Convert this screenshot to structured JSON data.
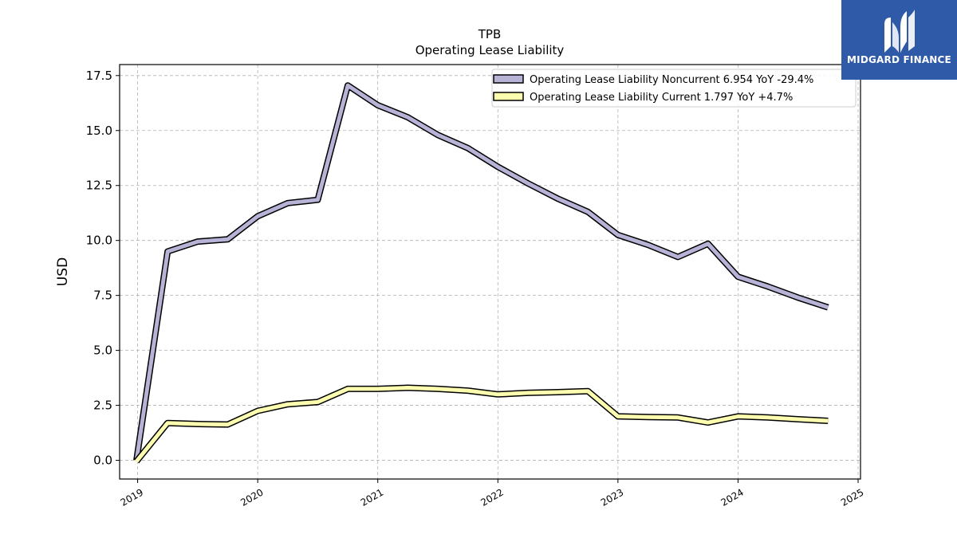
{
  "chart_data": {
    "type": "line",
    "title": "TPB",
    "subtitle": "Operating Lease Liability",
    "xlabel": "",
    "ylabel": "USD",
    "xlim": [
      2018.85,
      2025.02
    ],
    "ylim": [
      -0.85,
      18.0
    ],
    "x_ticks": [
      2019,
      2020,
      2021,
      2022,
      2023,
      2024,
      2025
    ],
    "x_tick_labels": [
      "2019",
      "2020",
      "2021",
      "2022",
      "2023",
      "2024",
      "2025"
    ],
    "y_ticks": [
      0.0,
      2.5,
      5.0,
      7.5,
      10.0,
      12.5,
      15.0,
      17.5
    ],
    "y_tick_labels": [
      "0.0",
      "2.5",
      "5.0",
      "7.5",
      "10.0",
      "12.5",
      "15.0",
      "17.5"
    ],
    "grid": true,
    "legend_position": "top-right",
    "series": [
      {
        "name": "Operating Lease Liability Noncurrent",
        "legend_label": "Operating Lease Liability Noncurrent  6.954 YoY -29.4%",
        "color": "#b7b3d6",
        "points": [
          [
            2018.99,
            0.0
          ],
          [
            2019.25,
            9.5
          ],
          [
            2019.5,
            9.95
          ],
          [
            2019.75,
            10.05
          ],
          [
            2020.0,
            11.1
          ],
          [
            2020.25,
            11.7
          ],
          [
            2020.5,
            11.85
          ],
          [
            2020.75,
            17.05
          ],
          [
            2021.0,
            16.15
          ],
          [
            2021.25,
            15.6
          ],
          [
            2021.5,
            14.8
          ],
          [
            2021.75,
            14.2
          ],
          [
            2022.0,
            13.35
          ],
          [
            2022.25,
            12.6
          ],
          [
            2022.5,
            11.9
          ],
          [
            2022.75,
            11.3
          ],
          [
            2023.0,
            10.25
          ],
          [
            2023.25,
            9.8
          ],
          [
            2023.5,
            9.25
          ],
          [
            2023.75,
            9.85
          ],
          [
            2024.0,
            8.35
          ],
          [
            2024.25,
            7.9
          ],
          [
            2024.5,
            7.4
          ],
          [
            2024.75,
            6.954
          ]
        ]
      },
      {
        "name": "Operating Lease Liability Current",
        "legend_label": "Operating Lease Liability Current  1.797 YoY +4.7%",
        "color": "#fdfdb0",
        "points": [
          [
            2018.99,
            -0.05
          ],
          [
            2019.25,
            1.7
          ],
          [
            2019.5,
            1.65
          ],
          [
            2019.75,
            1.63
          ],
          [
            2020.0,
            2.25
          ],
          [
            2020.25,
            2.55
          ],
          [
            2020.5,
            2.65
          ],
          [
            2020.75,
            3.25
          ],
          [
            2021.0,
            3.25
          ],
          [
            2021.25,
            3.3
          ],
          [
            2021.5,
            3.25
          ],
          [
            2021.75,
            3.17
          ],
          [
            2022.0,
            3.0
          ],
          [
            2022.25,
            3.07
          ],
          [
            2022.5,
            3.1
          ],
          [
            2022.75,
            3.15
          ],
          [
            2023.0,
            2.0
          ],
          [
            2023.25,
            1.97
          ],
          [
            2023.5,
            1.95
          ],
          [
            2023.75,
            1.72
          ],
          [
            2024.0,
            2.0
          ],
          [
            2024.25,
            1.95
          ],
          [
            2024.5,
            1.87
          ],
          [
            2024.75,
            1.797
          ]
        ]
      }
    ]
  },
  "logo": {
    "text": "MIDGARD FINANCE",
    "color": "#2f5aa8"
  }
}
